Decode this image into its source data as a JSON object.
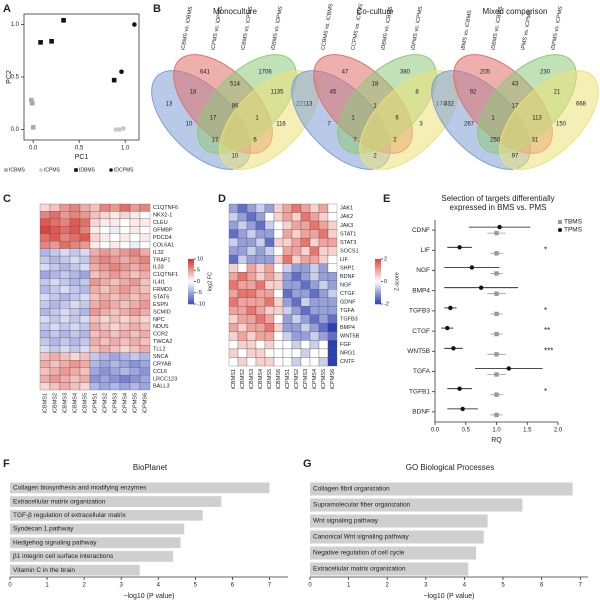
{
  "chart_data": [
    {
      "type": "scatter",
      "panel": "A",
      "xlabel": "PC1",
      "ylabel": "PC2",
      "xlim": [
        -0.1,
        1.15
      ],
      "ylim": [
        -0.1,
        1.1
      ],
      "xticks": [
        {
          "value": 0,
          "label": "0.0"
        },
        {
          "value": 0.5,
          "label": "0.5"
        },
        {
          "value": 1,
          "label": "1.0"
        }
      ],
      "yticks": [
        {
          "value": 0,
          "label": "0.0"
        },
        {
          "value": 0.5,
          "label": "0.5"
        },
        {
          "value": 1,
          "label": "1.0"
        }
      ],
      "series": [
        {
          "name": "ICBMS",
          "color": "#aaaaaa",
          "marker": "square",
          "x": [
            -0.02,
            -0.01,
            0.0
          ],
          "values": [
            0.28,
            0.25,
            0.02
          ]
        },
        {
          "name": "ICPMS",
          "color": "#c8c8c8",
          "marker": "circle",
          "x": [
            0.9,
            0.94,
            0.98
          ],
          "values": [
            0.0,
            0.0,
            0.01
          ]
        },
        {
          "name": "IDBMS",
          "color": "#111111",
          "marker": "square",
          "x": [
            0.08,
            0.2,
            0.33,
            0.88
          ],
          "values": [
            0.83,
            0.84,
            1.04,
            0.47
          ]
        },
        {
          "name": "IDCPMS",
          "color": "#111111",
          "marker": "circle",
          "x": [
            0.96,
            1.1
          ],
          "values": [
            0.55,
            1.0
          ]
        }
      ]
    },
    {
      "type": "venn",
      "panel": "B",
      "colors": [
        "#7d9fd6",
        "#e0706a",
        "#8ec97a",
        "#ece27a"
      ],
      "diagrams": [
        {
          "title": "Monoculture",
          "sets": [
            "iCBMS vs. iDBMS",
            "iCPMS vs. iDPMS",
            "iCBMS vs. iCPMS",
            "iDBMS vs. iDPMS"
          ],
          "counts": [
            641,
            1706,
            13,
            221,
            514,
            18,
            1135,
            10,
            116,
            86,
            17,
            1,
            17,
            6,
            10
          ]
        },
        {
          "title": "Co-culture",
          "sets": [
            "CCBMS vs. iCBMS",
            "CCPMS vs. iCPMS",
            "iDBMS vs. iCBMS",
            "iDPMS vs. iCPMS"
          ],
          "counts": [
            47,
            380,
            13,
            174,
            18,
            45,
            8,
            7,
            3,
            1,
            1,
            6,
            7,
            2,
            2
          ]
        },
        {
          "title": "Mixed comparison",
          "sets": [
            "iBMS vs. iCBMS",
            "iDBMS vs. iCBMS",
            "iPMS vs. iCPMS",
            "iDPMS vs. iCPMS"
          ],
          "counts": [
            205,
            230,
            332,
            668,
            43,
            92,
            21,
            267,
            150,
            17,
            1,
            113,
            250,
            31,
            97
          ]
        }
      ]
    },
    {
      "type": "heatmap",
      "panel": "C",
      "colorbar_title": "log2 FC",
      "clim": [
        -10,
        10
      ],
      "cticks": [
        -10,
        -5,
        0,
        5,
        10
      ],
      "colors": [
        "#3b4cc0",
        "#ffffff",
        "#d73027"
      ],
      "columns": [
        "iCBMS1",
        "iCBMS2",
        "iCBMS3",
        "iCBMS4",
        "iCBMS5",
        "iCPMS1",
        "iCPMS2",
        "iCPMS3",
        "iCPMS4",
        "iCPMS5",
        "iCPMS6"
      ],
      "rows": [
        "C1QTNF6",
        "NKX2-1",
        "CLEU",
        "GFMBP",
        "PDCD4",
        "COL6A1",
        "IL32",
        "TRAF1",
        "IL33",
        "C1QTNF1",
        "IL4I1",
        "FRMD3",
        "STAT6",
        "ESPN",
        "SCMID",
        "NPC",
        "NDUS",
        "CCR2",
        "TWCA2",
        "TLL2",
        "SNCA",
        "CRYAB",
        "CCL6",
        "LRCC123",
        "BALL3"
      ],
      "values": [
        [
          2,
          3,
          5,
          6,
          4,
          3,
          6,
          5,
          7,
          5,
          6
        ],
        [
          6,
          7,
          5,
          6,
          5,
          3,
          2,
          1,
          2,
          1,
          0
        ],
        [
          8,
          7,
          6,
          8,
          7,
          2,
          1,
          1,
          0,
          1,
          1
        ],
        [
          9,
          8,
          7,
          8,
          6,
          1,
          0,
          -1,
          0,
          1,
          0
        ],
        [
          7,
          8,
          6,
          7,
          8,
          2,
          1,
          0,
          1,
          0,
          1
        ],
        [
          6,
          5,
          7,
          6,
          5,
          1,
          0,
          1,
          0,
          -1,
          0
        ],
        [
          -4,
          -3,
          -2,
          -3,
          -2,
          4,
          5,
          4,
          5,
          6,
          4
        ],
        [
          -3,
          -4,
          -3,
          -2,
          -3,
          5,
          6,
          5,
          4,
          5,
          6
        ],
        [
          -2,
          -3,
          -4,
          -3,
          -2,
          4,
          5,
          6,
          5,
          4,
          5
        ],
        [
          -5,
          -4,
          -3,
          -4,
          -5,
          3,
          4,
          5,
          4,
          3,
          4
        ],
        [
          -3,
          -2,
          -3,
          -4,
          -3,
          5,
          4,
          3,
          4,
          5,
          3
        ],
        [
          -4,
          -3,
          -2,
          -3,
          -4,
          4,
          3,
          4,
          5,
          4,
          3
        ],
        [
          -2,
          -3,
          -4,
          -3,
          -2,
          3,
          4,
          3,
          4,
          3,
          4
        ],
        [
          -3,
          -4,
          -3,
          -2,
          -3,
          4,
          5,
          4,
          3,
          4,
          5
        ],
        [
          -4,
          -3,
          -2,
          -3,
          -4,
          5,
          4,
          3,
          4,
          5,
          4
        ],
        [
          -2,
          -3,
          -2,
          -3,
          -2,
          3,
          2,
          3,
          2,
          3,
          2
        ],
        [
          -3,
          -2,
          -3,
          -2,
          -3,
          4,
          3,
          2,
          3,
          4,
          3
        ],
        [
          -4,
          -3,
          -4,
          -3,
          -4,
          3,
          4,
          3,
          4,
          3,
          4
        ],
        [
          -3,
          -4,
          -3,
          -4,
          -3,
          4,
          3,
          4,
          3,
          4,
          3
        ],
        [
          -2,
          -3,
          -2,
          -3,
          -2,
          3,
          4,
          3,
          2,
          3,
          4
        ],
        [
          3,
          4,
          3,
          2,
          3,
          -3,
          -4,
          -5,
          -4,
          -3,
          -4
        ],
        [
          4,
          3,
          4,
          5,
          4,
          -4,
          -5,
          -4,
          -5,
          -6,
          -5
        ],
        [
          3,
          4,
          5,
          4,
          3,
          -5,
          -6,
          -5,
          -4,
          -5,
          -6
        ],
        [
          4,
          5,
          4,
          3,
          4,
          -6,
          -5,
          -6,
          -7,
          -6,
          -5
        ],
        [
          2,
          3,
          4,
          3,
          2,
          -4,
          -5,
          -4,
          -5,
          -4,
          -5
        ]
      ]
    },
    {
      "type": "heatmap",
      "panel": "D",
      "colorbar_title": "Z-score",
      "clim": [
        -2,
        2
      ],
      "cticks": [
        -2,
        0,
        2
      ],
      "colors": [
        "#2b3fb5",
        "#ffffff",
        "#e0453a"
      ],
      "columns": [
        "iCBMS1",
        "iCBMS2",
        "iCBMS3",
        "iCBMS4",
        "iCBMS5",
        "iCBMS6",
        "iCPMS1",
        "iCPMS2",
        "iCPMS3",
        "iCPMS4",
        "iCPMS5",
        "iCPMS6"
      ],
      "rows": [
        "JAK1",
        "JAK2",
        "JAK3",
        "STAT1",
        "STAT3",
        "SOCS1",
        "LIF",
        "SHP1",
        "BDNF",
        "NGF",
        "CTGF",
        "GDNF",
        "TGFA",
        "TGFB3",
        "BMP4",
        "WNT5B",
        "FGF",
        "NRG1",
        "CNTF"
      ],
      "values": [
        [
          -1,
          -1.5,
          -1,
          -0.5,
          -1,
          0.5,
          1,
          1.5,
          1,
          0.5,
          1,
          0
        ],
        [
          -0.5,
          -1,
          -1.5,
          -1,
          0,
          0.5,
          1,
          0.5,
          1.5,
          1,
          0.5,
          0
        ],
        [
          -1,
          -0.5,
          -1,
          -1.5,
          -0.5,
          0,
          0.5,
          1,
          1,
          1.5,
          1,
          0.5
        ],
        [
          -1.5,
          -1,
          -0.5,
          -1,
          -1,
          0,
          1,
          0.5,
          1,
          1,
          1.5,
          0.5
        ],
        [
          -0.5,
          -1,
          -1,
          -0.5,
          -1.5,
          0.5,
          0.5,
          1,
          1.5,
          0.5,
          1,
          1
        ],
        [
          -1,
          -1,
          -0.5,
          -1,
          -0.5,
          0,
          1,
          1,
          0.5,
          1.5,
          0.5,
          0.5
        ],
        [
          -1.5,
          -0.5,
          -1,
          -1,
          -1,
          0.5,
          1.5,
          0.5,
          1,
          1,
          0.5,
          0
        ],
        [
          0.5,
          0,
          1,
          0.5,
          1,
          0,
          -0.5,
          -1,
          -1,
          -0.5,
          -1,
          0
        ],
        [
          1,
          1.5,
          1,
          0.5,
          1,
          0.5,
          -1,
          -1.5,
          -1,
          -0.5,
          -1,
          -1
        ],
        [
          1.5,
          1,
          1,
          1.5,
          0.5,
          0.5,
          -1,
          -1,
          -1.5,
          -1,
          -0.5,
          -1
        ],
        [
          1,
          1.5,
          1.5,
          1,
          1,
          0,
          -1.5,
          -1,
          -1,
          -1.5,
          -1,
          -0.5
        ],
        [
          1.5,
          1,
          1,
          1,
          1.5,
          0.5,
          -1,
          -1.5,
          -0.5,
          -1,
          -1,
          -1
        ],
        [
          1,
          1,
          1.5,
          1,
          0.5,
          0.5,
          -0.5,
          -1,
          -1.5,
          -1,
          -1,
          -1
        ],
        [
          0.5,
          1,
          1,
          1.5,
          1,
          0,
          -1,
          -0.5,
          -1,
          -1.5,
          -1,
          -1.5
        ],
        [
          1,
          0.5,
          1,
          1,
          1.5,
          0.5,
          -1,
          -1,
          -0.5,
          -1,
          -1.5,
          -2
        ],
        [
          0.5,
          1,
          0.5,
          1,
          1,
          0,
          -0.5,
          -1,
          -1,
          -0.5,
          -1,
          -1.5
        ],
        [
          0,
          0.5,
          0.5,
          0,
          0.5,
          0,
          0,
          -0.5,
          0,
          -0.5,
          0,
          -2
        ],
        [
          0.5,
          0,
          0.5,
          0.5,
          0,
          0,
          0,
          0,
          -0.5,
          0,
          0,
          -2
        ],
        [
          0,
          0.5,
          0,
          0.5,
          0.5,
          0,
          0,
          -0.5,
          0,
          0,
          -0.5,
          -2
        ]
      ]
    },
    {
      "type": "dot",
      "panel": "E",
      "title": [
        "Selection of targets differentially",
        "expressed in BMS vs. PMS"
      ],
      "xlabel": "RQ",
      "xlim": [
        0,
        2
      ],
      "xticks": [
        {
          "value": 0,
          "label": "0.0"
        },
        {
          "value": 0.5,
          "label": "0.5"
        },
        {
          "value": 1,
          "label": "1.0"
        },
        {
          "value": 1.5,
          "label": "1.5"
        },
        {
          "value": 2,
          "label": "2.0"
        }
      ],
      "categories": [
        "CDNF",
        "LIF",
        "NGF",
        "BMP4",
        "TGFB3",
        "CTGF",
        "WNT5B",
        "TGFA",
        "TGFB1",
        "BDNF"
      ],
      "series": [
        {
          "name": "TBMS",
          "color": "#999999",
          "marker": "square",
          "values": [
            1.0,
            1.0,
            1.0,
            1.0,
            1.0,
            1.0,
            1.0,
            1.0,
            1.0,
            1.0
          ],
          "errors": [
            0.15,
            0.1,
            0.1,
            0.15,
            0.1,
            0.1,
            0.15,
            0.15,
            0.1,
            0.1
          ]
        },
        {
          "name": "TPMS",
          "color": "#111111",
          "marker": "circle",
          "values": [
            1.05,
            0.4,
            0.6,
            0.75,
            0.25,
            0.2,
            0.3,
            1.2,
            0.4,
            0.45
          ],
          "errors": [
            0.5,
            0.2,
            0.45,
            0.6,
            0.1,
            0.1,
            0.15,
            0.55,
            0.2,
            0.25
          ]
        }
      ],
      "significance": [
        null,
        "*",
        null,
        null,
        "*",
        "**",
        "***",
        null,
        "*",
        null
      ]
    },
    {
      "type": "hbar",
      "panel": "F",
      "title": "BioPlanet",
      "xlabel": "−log10 (P value)",
      "color": "#cfcfcf",
      "xlim": [
        0,
        7.5
      ],
      "xticks": [
        0,
        1,
        2,
        3,
        4,
        5,
        6,
        7
      ],
      "categories": [
        "Collagen biosynthesis and modifying enzymes",
        "Extracellular matrix organization",
        "TGF-β regulation of extracellular matrix",
        "Syndecan 1 pathway",
        "Hedgehog signaling pathway",
        "β1 integrin cell surface interactions",
        "Vitamin C in the brain"
      ],
      "values": [
        7.0,
        5.7,
        5.2,
        4.7,
        4.6,
        4.4,
        3.5
      ]
    },
    {
      "type": "hbar",
      "panel": "G",
      "title": "GO Biological Processes",
      "xlabel": "−log10 (P value)",
      "color": "#cfcfcf",
      "xlim": [
        0,
        7.2
      ],
      "xticks": [
        0,
        1,
        2,
        3,
        4,
        5,
        6,
        7
      ],
      "categories": [
        "Collagen fibril organization",
        "Supramolecular fiber organization",
        "Wnt signaling pathway",
        "Canonical Wnt signaling pathway",
        "Negative regulation of cell cycle",
        "Extracellular matrix organization"
      ],
      "values": [
        6.8,
        5.5,
        4.6,
        4.5,
        4.3,
        4.1
      ]
    }
  ]
}
